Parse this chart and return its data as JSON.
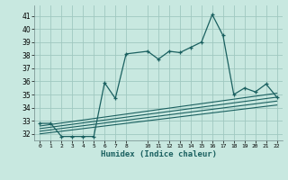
{
  "xlabel": "Humidex (Indice chaleur)",
  "bg_color": "#c8e8e0",
  "grid_color": "#a0c8c0",
  "line_color": "#1a6060",
  "xlim": [
    -0.5,
    22.5
  ],
  "ylim": [
    31.5,
    41.8
  ],
  "yticks": [
    32,
    33,
    34,
    35,
    36,
    37,
    38,
    39,
    40,
    41
  ],
  "xtick_vals": [
    0,
    1,
    2,
    3,
    4,
    5,
    6,
    7,
    8,
    10,
    11,
    12,
    13,
    14,
    15,
    16,
    17,
    18,
    19,
    20,
    21,
    22
  ],
  "xtick_labels": [
    "0",
    "1",
    "2",
    "3",
    "4",
    "5",
    "6",
    "7",
    "8",
    "10",
    "11",
    "12",
    "13",
    "14",
    "15",
    "16",
    "17",
    "18",
    "19",
    "20",
    "21",
    "22"
  ],
  "main_x": [
    0,
    1,
    2,
    3,
    4,
    5,
    6,
    7,
    8,
    10,
    11,
    12,
    13,
    14,
    15,
    16,
    17,
    18,
    19,
    20,
    21,
    22
  ],
  "main_y": [
    32.8,
    32.8,
    31.8,
    31.8,
    31.8,
    31.8,
    35.9,
    34.7,
    38.1,
    38.3,
    37.7,
    38.3,
    38.2,
    38.6,
    39.0,
    41.1,
    39.5,
    35.0,
    35.5,
    35.2,
    35.8,
    34.8
  ],
  "linear_lines": [
    {
      "x": [
        0,
        22
      ],
      "y": [
        32.6,
        35.1
      ]
    },
    {
      "x": [
        0,
        22
      ],
      "y": [
        32.4,
        34.8
      ]
    },
    {
      "x": [
        0,
        22
      ],
      "y": [
        32.2,
        34.5
      ]
    },
    {
      "x": [
        0,
        22
      ],
      "y": [
        32.0,
        34.2
      ]
    }
  ]
}
